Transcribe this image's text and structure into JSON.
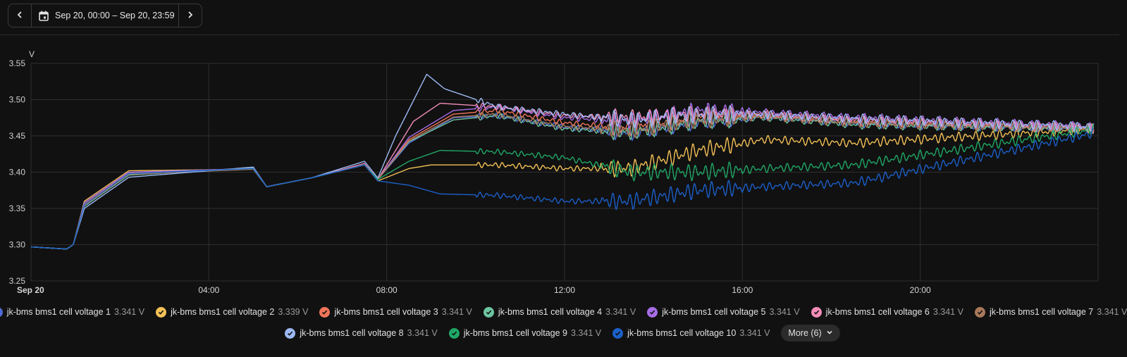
{
  "header": {
    "date_range": "Sep 20, 00:00 – Sep 20, 23:59"
  },
  "chart_data": {
    "type": "line",
    "unit": "V",
    "ylim": [
      3.25,
      3.55
    ],
    "yticks": [
      "3.55",
      "3.50",
      "3.45",
      "3.40",
      "3.35",
      "3.30",
      "3.25"
    ],
    "xlim": [
      0,
      24
    ],
    "xticks": [
      {
        "h": 0,
        "label": "Sep 20"
      },
      {
        "h": 4,
        "label": "04:00"
      },
      {
        "h": 8,
        "label": "08:00"
      },
      {
        "h": 12,
        "label": "12:00"
      },
      {
        "h": 16,
        "label": "16:00"
      },
      {
        "h": 20,
        "label": "20:00"
      }
    ],
    "grid": true,
    "series": [
      {
        "name": "jk-bms bms1 cell voltage 1",
        "value": "3.341 V",
        "color": "#4f6bd8",
        "anchors": [
          [
            0,
            3.297
          ],
          [
            0.8,
            3.294
          ],
          [
            0.95,
            3.3
          ],
          [
            1.2,
            3.355
          ],
          [
            2.2,
            3.398
          ],
          [
            5,
            3.405
          ],
          [
            5.3,
            3.38
          ],
          [
            6.3,
            3.392
          ],
          [
            7.5,
            3.41
          ],
          [
            7.8,
            3.39
          ],
          [
            8.5,
            3.44
          ],
          [
            9.5,
            3.475
          ],
          [
            10.5,
            3.478
          ],
          [
            12,
            3.462
          ],
          [
            13.5,
            3.455
          ],
          [
            15,
            3.47
          ],
          [
            16.5,
            3.478
          ],
          [
            18.5,
            3.468
          ],
          [
            24,
            3.46
          ]
        ]
      },
      {
        "name": "jk-bms bms1 cell voltage 2",
        "value": "3.339 V",
        "color": "#f4c156",
        "anchors": [
          [
            0,
            3.297
          ],
          [
            0.8,
            3.294
          ],
          [
            0.95,
            3.3
          ],
          [
            1.2,
            3.36
          ],
          [
            2.2,
            3.402
          ],
          [
            5,
            3.404
          ],
          [
            5.3,
            3.38
          ],
          [
            6.3,
            3.392
          ],
          [
            7.5,
            3.41
          ],
          [
            7.8,
            3.388
          ],
          [
            8.5,
            3.405
          ],
          [
            9,
            3.41
          ],
          [
            10.5,
            3.41
          ],
          [
            12,
            3.405
          ],
          [
            13.5,
            3.405
          ],
          [
            15,
            3.43
          ],
          [
            16.5,
            3.445
          ],
          [
            18.5,
            3.44
          ],
          [
            24,
            3.46
          ]
        ]
      },
      {
        "name": "jk-bms bms1 cell voltage 3",
        "value": "3.341 V",
        "color": "#f0755a",
        "anchors": [
          [
            0,
            3.297
          ],
          [
            0.8,
            3.294
          ],
          [
            0.95,
            3.3
          ],
          [
            1.2,
            3.356
          ],
          [
            2.2,
            3.399
          ],
          [
            5,
            3.405
          ],
          [
            5.3,
            3.38
          ],
          [
            6.3,
            3.392
          ],
          [
            7.5,
            3.41
          ],
          [
            7.8,
            3.39
          ],
          [
            8.5,
            3.445
          ],
          [
            9.5,
            3.48
          ],
          [
            10.5,
            3.485
          ],
          [
            12,
            3.468
          ],
          [
            13.5,
            3.46
          ],
          [
            15,
            3.475
          ],
          [
            16.5,
            3.48
          ],
          [
            18.5,
            3.47
          ],
          [
            24,
            3.46
          ]
        ]
      },
      {
        "name": "jk-bms bms1 cell voltage 4",
        "value": "3.341 V",
        "color": "#6cc4a1",
        "anchors": [
          [
            0,
            3.297
          ],
          [
            0.8,
            3.294
          ],
          [
            0.95,
            3.3
          ],
          [
            1.2,
            3.353
          ],
          [
            2.2,
            3.396
          ],
          [
            5,
            3.406
          ],
          [
            5.3,
            3.38
          ],
          [
            6.3,
            3.392
          ],
          [
            7.5,
            3.41
          ],
          [
            7.8,
            3.39
          ],
          [
            8.5,
            3.442
          ],
          [
            9.5,
            3.472
          ],
          [
            10.5,
            3.478
          ],
          [
            12,
            3.46
          ],
          [
            13.5,
            3.455
          ],
          [
            15,
            3.47
          ],
          [
            16.5,
            3.476
          ],
          [
            18.5,
            3.466
          ],
          [
            24,
            3.46
          ]
        ]
      },
      {
        "name": "jk-bms bms1 cell voltage 5",
        "value": "3.341 V",
        "color": "#a66de6",
        "anchors": [
          [
            0,
            3.297
          ],
          [
            0.8,
            3.294
          ],
          [
            0.95,
            3.3
          ],
          [
            1.2,
            3.358
          ],
          [
            2.2,
            3.4
          ],
          [
            5,
            3.405
          ],
          [
            5.3,
            3.38
          ],
          [
            6.3,
            3.392
          ],
          [
            7.5,
            3.41
          ],
          [
            7.8,
            3.39
          ],
          [
            8.5,
            3.448
          ],
          [
            9.5,
            3.485
          ],
          [
            10.5,
            3.49
          ],
          [
            12,
            3.475
          ],
          [
            13.5,
            3.47
          ],
          [
            15,
            3.485
          ],
          [
            16.5,
            3.482
          ],
          [
            18.5,
            3.475
          ],
          [
            24,
            3.462
          ]
        ]
      },
      {
        "name": "jk-bms bms1 cell voltage 6",
        "value": "3.341 V",
        "color": "#f08cb8",
        "anchors": [
          [
            0,
            3.297
          ],
          [
            0.8,
            3.294
          ],
          [
            0.95,
            3.3
          ],
          [
            1.2,
            3.355
          ],
          [
            2.2,
            3.398
          ],
          [
            5,
            3.405
          ],
          [
            5.3,
            3.38
          ],
          [
            6.3,
            3.392
          ],
          [
            7.5,
            3.412
          ],
          [
            7.8,
            3.39
          ],
          [
            8.6,
            3.47
          ],
          [
            9.2,
            3.495
          ],
          [
            10.5,
            3.49
          ],
          [
            12,
            3.478
          ],
          [
            13.5,
            3.475
          ],
          [
            15,
            3.48
          ],
          [
            16.5,
            3.478
          ],
          [
            18.5,
            3.472
          ],
          [
            24,
            3.46
          ]
        ]
      },
      {
        "name": "jk-bms bms1 cell voltage 7",
        "value": "3.341 V",
        "color": "#a9785a",
        "anchors": [
          [
            0,
            3.297
          ],
          [
            0.8,
            3.294
          ],
          [
            0.95,
            3.3
          ],
          [
            1.2,
            3.354
          ],
          [
            2.2,
            3.397
          ],
          [
            5,
            3.404
          ],
          [
            5.3,
            3.38
          ],
          [
            6.3,
            3.392
          ],
          [
            7.5,
            3.41
          ],
          [
            7.8,
            3.39
          ],
          [
            8.5,
            3.443
          ],
          [
            9.5,
            3.476
          ],
          [
            10.5,
            3.48
          ],
          [
            12,
            3.463
          ],
          [
            13.5,
            3.458
          ],
          [
            15,
            3.472
          ],
          [
            16.5,
            3.477
          ],
          [
            18.5,
            3.468
          ],
          [
            24,
            3.46
          ]
        ]
      },
      {
        "name": "jk-bms bms1 cell voltage 8",
        "value": "3.341 V",
        "color": "#9db9f4",
        "anchors": [
          [
            0,
            3.297
          ],
          [
            0.8,
            3.294
          ],
          [
            0.95,
            3.3
          ],
          [
            1.2,
            3.35
          ],
          [
            2.2,
            3.393
          ],
          [
            5,
            3.407
          ],
          [
            5.3,
            3.38
          ],
          [
            6.3,
            3.392
          ],
          [
            7.5,
            3.415
          ],
          [
            7.8,
            3.392
          ],
          [
            8.2,
            3.45
          ],
          [
            8.9,
            3.535
          ],
          [
            9.3,
            3.515
          ],
          [
            10.5,
            3.49
          ],
          [
            12,
            3.48
          ],
          [
            13.5,
            3.472
          ],
          [
            15,
            3.48
          ],
          [
            16.5,
            3.48
          ],
          [
            18.5,
            3.474
          ],
          [
            24,
            3.462
          ]
        ]
      },
      {
        "name": "jk-bms bms1 cell voltage 9",
        "value": "3.341 V",
        "color": "#20a766",
        "anchors": [
          [
            0,
            3.297
          ],
          [
            0.8,
            3.294
          ],
          [
            0.95,
            3.3
          ],
          [
            1.2,
            3.355
          ],
          [
            2.2,
            3.398
          ],
          [
            5,
            3.405
          ],
          [
            5.3,
            3.38
          ],
          [
            6.3,
            3.392
          ],
          [
            7.5,
            3.41
          ],
          [
            7.8,
            3.39
          ],
          [
            8.5,
            3.415
          ],
          [
            9.2,
            3.43
          ],
          [
            10.5,
            3.428
          ],
          [
            12,
            3.42
          ],
          [
            13.5,
            3.4
          ],
          [
            15,
            3.4
          ],
          [
            16.5,
            3.405
          ],
          [
            18.5,
            3.41
          ],
          [
            24,
            3.46
          ]
        ]
      },
      {
        "name": "jk-bms bms1 cell voltage 10",
        "value": "3.341 V",
        "color": "#1c5fc9",
        "anchors": [
          [
            0,
            3.297
          ],
          [
            0.8,
            3.294
          ],
          [
            0.95,
            3.3
          ],
          [
            1.2,
            3.355
          ],
          [
            2.2,
            3.398
          ],
          [
            5,
            3.405
          ],
          [
            5.3,
            3.38
          ],
          [
            6.3,
            3.392
          ],
          [
            7.5,
            3.41
          ],
          [
            7.8,
            3.388
          ],
          [
            8.5,
            3.382
          ],
          [
            9.2,
            3.37
          ],
          [
            10.5,
            3.368
          ],
          [
            12,
            3.36
          ],
          [
            13.5,
            3.36
          ],
          [
            15,
            3.375
          ],
          [
            16.5,
            3.38
          ],
          [
            18.5,
            3.385
          ],
          [
            24,
            3.455
          ]
        ]
      }
    ]
  },
  "legend": {
    "more_label": "More (6)"
  }
}
